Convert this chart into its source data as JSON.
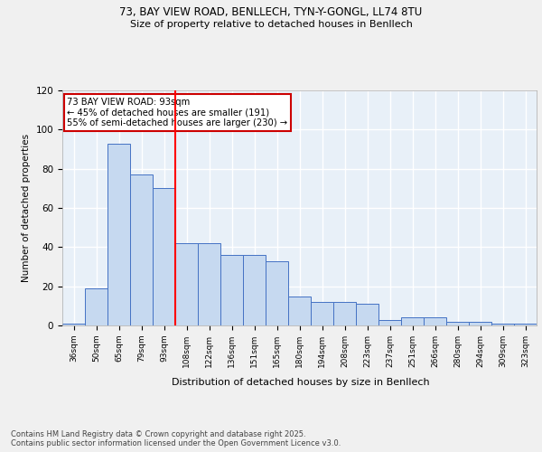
{
  "title1": "73, BAY VIEW ROAD, BENLLECH, TYN-Y-GONGL, LL74 8TU",
  "title2": "Size of property relative to detached houses in Benllech",
  "xlabel": "Distribution of detached houses by size in Benllech",
  "ylabel": "Number of detached properties",
  "categories": [
    "36sqm",
    "50sqm",
    "65sqm",
    "79sqm",
    "93sqm",
    "108sqm",
    "122sqm",
    "136sqm",
    "151sqm",
    "165sqm",
    "180sqm",
    "194sqm",
    "208sqm",
    "223sqm",
    "237sqm",
    "251sqm",
    "266sqm",
    "280sqm",
    "294sqm",
    "309sqm",
    "323sqm"
  ],
  "values": [
    1,
    19,
    93,
    77,
    70,
    42,
    42,
    36,
    36,
    33,
    15,
    12,
    12,
    11,
    3,
    4,
    4,
    2,
    2,
    1,
    1
  ],
  "bar_color": "#c6d9f0",
  "bar_edge_color": "#4472c4",
  "red_line_index": 4,
  "annotation_text": "73 BAY VIEW ROAD: 93sqm\n← 45% of detached houses are smaller (191)\n55% of semi-detached houses are larger (230) →",
  "annotation_box_color": "#ffffff",
  "annotation_box_edge": "#cc0000",
  "footer_text": "Contains HM Land Registry data © Crown copyright and database right 2025.\nContains public sector information licensed under the Open Government Licence v3.0.",
  "ylim": [
    0,
    120
  ],
  "yticks": [
    0,
    20,
    40,
    60,
    80,
    100,
    120
  ],
  "background_color": "#e8f0f8",
  "grid_color": "#ffffff",
  "fig_bg": "#f0f0f0"
}
